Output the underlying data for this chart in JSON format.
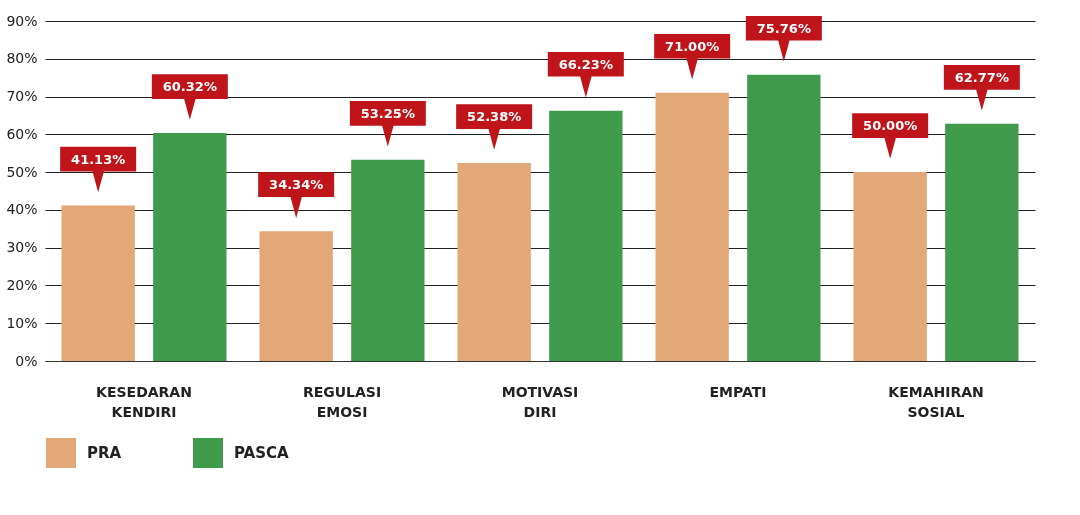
{
  "chart_data": {
    "type": "bar",
    "categories": [
      "KESEDARAN KENDIRI",
      "REGULASI EMOSI",
      "MOTIVASI DIRI",
      "EMPATI",
      "KEMAHIRAN SOSIAL"
    ],
    "series": [
      {
        "name": "PRA",
        "color": "#e2a877",
        "values": [
          41.13,
          34.34,
          52.38,
          71.0,
          50.0
        ],
        "value_labels": [
          "41.13%",
          "34.34%",
          "52.38%",
          "71.00%",
          "50.00%"
        ]
      },
      {
        "name": "PASCA",
        "color": "#3f9a4c",
        "values": [
          60.32,
          53.25,
          66.23,
          75.76,
          62.77
        ],
        "value_labels": [
          "60.32%",
          "53.25%",
          "66.23%",
          "75.76%",
          "62.77%"
        ]
      }
    ],
    "ylim": [
      0,
      90
    ],
    "yticks": [
      {
        "value": 0,
        "label": "0%"
      },
      {
        "value": 10,
        "label": "10%"
      },
      {
        "value": 20,
        "label": "20%"
      },
      {
        "value": 30,
        "label": "30%"
      },
      {
        "value": 40,
        "label": "40%"
      },
      {
        "value": 50,
        "label": "50%"
      },
      {
        "value": 60,
        "label": "60%"
      },
      {
        "value": 70,
        "label": "70%"
      },
      {
        "value": 80,
        "label": "80%"
      },
      {
        "value": 90,
        "label": "90%"
      }
    ],
    "grid": "y",
    "legend": "bottom"
  }
}
